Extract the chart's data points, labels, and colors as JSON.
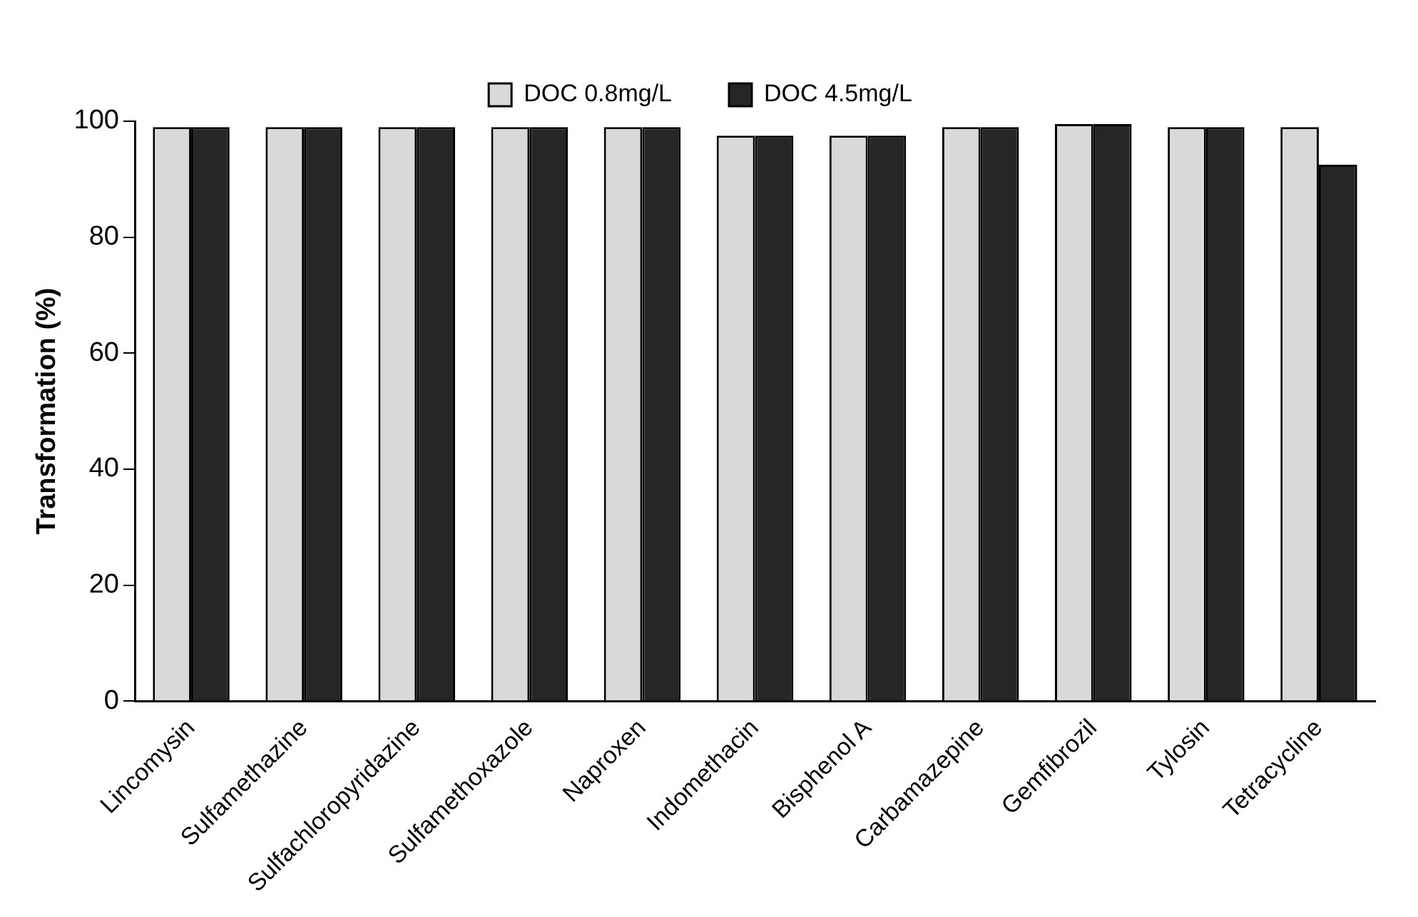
{
  "chart_data": {
    "type": "bar",
    "ylabel": "Transformation (%)",
    "categories": [
      "Lincomysin",
      "Sulfamethazine",
      "Sulfachloropyridazine",
      "Sulfamethoxazole",
      "Naproxen",
      "Indomethacin",
      "Bisphenol A",
      "Carbamazepine",
      "Gemfibrozil",
      "Tylosin",
      "Tetracycline"
    ],
    "series": [
      {
        "name": "DOC 0.8mg/L",
        "color": "#d9d9d9",
        "values": [
          99,
          99,
          99,
          99,
          99,
          97.5,
          97.5,
          99,
          99.5,
          99,
          99
        ]
      },
      {
        "name": "DOC 4.5mg/L",
        "color": "#262626",
        "values": [
          99,
          99,
          99,
          99,
          99,
          97.5,
          97.5,
          99,
          99.5,
          99,
          92.5
        ]
      }
    ],
    "ylim": [
      0,
      100
    ],
    "yticks": [
      0,
      20,
      40,
      60,
      80,
      100
    ],
    "grid": false,
    "legend": "top"
  }
}
